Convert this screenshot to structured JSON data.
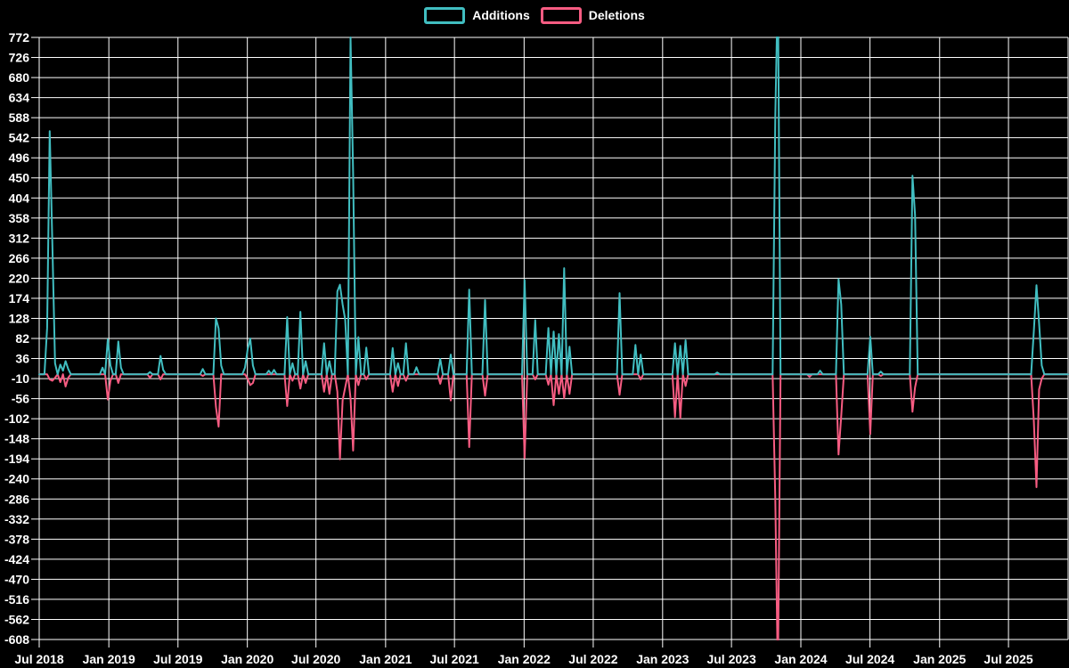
{
  "chart_data": {
    "type": "line",
    "title": "",
    "legend": [
      {
        "label": "Additions",
        "color": "#41BEC1"
      },
      {
        "label": "Deletions",
        "color": "#F75C82"
      }
    ],
    "legend_position": "top-center",
    "grid": true,
    "colors": {
      "background": "#000000",
      "grid": "#FFFFFF",
      "text": "#FFFFFF"
    },
    "y_axis": {
      "min": -608,
      "max": 772,
      "step": 46,
      "tick_labels": [
        "772",
        "726",
        "680",
        "634",
        "588",
        "542",
        "496",
        "450",
        "404",
        "358",
        "312",
        "266",
        "220",
        "174",
        "128",
        "82",
        "36",
        "-10",
        "-56",
        "-102",
        "-148",
        "-194",
        "-240",
        "-286",
        "-332",
        "-378",
        "-424",
        "-470",
        "-516",
        "-562",
        "-608"
      ]
    },
    "x_axis": {
      "tick_labels": [
        "Jul 2018",
        "Jan 2019",
        "Jul 2019",
        "Jan 2020",
        "Jul 2020",
        "Jan 2021",
        "Jul 2021",
        "Jan 2022",
        "Jul 2022",
        "Jan 2023",
        "Jul 2023",
        "Jan 2024",
        "Jul 2024",
        "Jan 2025",
        "Jul 2025"
      ],
      "tick_weeks": [
        0,
        26.4,
        52.6,
        78.9,
        104.9,
        131.3,
        157.4,
        183.8,
        210.0,
        236.3,
        262.4,
        288.7,
        314.9,
        341.3,
        367.4
      ],
      "total_weeks": 390
    },
    "baseline": 0,
    "series": [
      {
        "name": "Additions",
        "color": "#41BEC1",
        "points": {
          "3": 106,
          "4": 557,
          "5": 296,
          "6": 25,
          "8": 22,
          "9": 8,
          "10": 30,
          "11": 12,
          "24": 15,
          "26": 80,
          "27": 20,
          "30": 75,
          "31": 15,
          "42": 5,
          "46": 42,
          "47": 10,
          "62": 12,
          "67": 128,
          "68": 105,
          "69": 20,
          "78": 15,
          "79": 57,
          "80": 82,
          "81": 20,
          "87": 8,
          "89": 10,
          "94": 131,
          "96": 25,
          "99": 143,
          "101": 30,
          "108": 71,
          "110": 30,
          "113": 190,
          "114": 205,
          "115": 160,
          "116": 125,
          "118": 772,
          "119": 460,
          "121": 85,
          "124": 61,
          "134": 60,
          "136": 25,
          "139": 71,
          "143": 16,
          "152": 35,
          "156": 45,
          "163": 194,
          "169": 170,
          "184": 216,
          "188": 124,
          "193": 106,
          "195": 98,
          "197": 92,
          "199": 243,
          "201": 63,
          "220": 186,
          "226": 67,
          "228": 45,
          "241": 71,
          "243": 65,
          "245": 78,
          "257": 4,
          "279": 590,
          "280": 900,
          "296": 8,
          "303": 218,
          "304": 160,
          "315": 86,
          "319": 6,
          "331": 455,
          "332": 365,
          "377": 98,
          "378": 204,
          "379": 118,
          "380": 20
        }
      },
      {
        "name": "Deletions",
        "color": "#F75C82",
        "points": {
          "4": -12,
          "5": -15,
          "6": -8,
          "8": -18,
          "10": -28,
          "11": -8,
          "26": -58,
          "27": -15,
          "30": -20,
          "42": -8,
          "46": -12,
          "62": -4,
          "67": -75,
          "68": -120,
          "79": -10,
          "80": -25,
          "81": -20,
          "94": -73,
          "96": -15,
          "99": -33,
          "101": -20,
          "108": -40,
          "110": -45,
          "113": -40,
          "114": -195,
          "115": -60,
          "116": -30,
          "118": -55,
          "119": -175,
          "121": -25,
          "124": -12,
          "134": -40,
          "136": -27,
          "139": -15,
          "152": -22,
          "156": -60,
          "163": -167,
          "169": -49,
          "184": -192,
          "188": -12,
          "193": -24,
          "195": -71,
          "197": -45,
          "199": -55,
          "201": -45,
          "220": -47,
          "228": -12,
          "241": -98,
          "243": -100,
          "245": -27,
          "279": -286,
          "280": -700,
          "292": -6,
          "303": -184,
          "304": -96,
          "315": -137,
          "319": -4,
          "331": -86,
          "332": -30,
          "377": -106,
          "378": -259,
          "379": -35,
          "380": -10
        }
      }
    ]
  }
}
